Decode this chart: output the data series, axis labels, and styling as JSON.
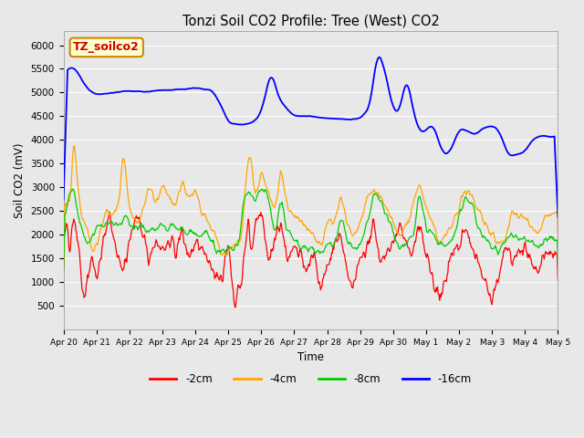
{
  "title": "Tonzi Soil CO2 Profile: Tree (West) CO2",
  "ylabel": "Soil CO2 (mV)",
  "xlabel": "Time",
  "annotation_text": "TZ_soilco2",
  "annotation_bg": "#ffffcc",
  "annotation_border": "#cc8800",
  "annotation_text_color": "#cc0000",
  "ylim": [
    0,
    6300
  ],
  "yticks": [
    500,
    1000,
    1500,
    2000,
    2500,
    3000,
    3500,
    4000,
    4500,
    5000,
    5500,
    6000
  ],
  "background_color": "#e8e8e8",
  "grid_color": "#ffffff",
  "colors": {
    "-2cm": "#ff0000",
    "-4cm": "#ffa500",
    "-8cm": "#00cc00",
    "-16cm": "#0000ff"
  },
  "legend_labels": [
    "-2cm",
    "-4cm",
    "-8cm",
    "-16cm"
  ],
  "xtick_labels": [
    "Apr 20",
    "Apr 21",
    "Apr 22",
    "Apr 23",
    "Apr 24",
    "Apr 25",
    "Apr 26",
    "Apr 27",
    "Apr 28",
    "Apr 29",
    "Apr 30",
    "May 1",
    "May 2",
    "May 3",
    "May 4",
    "May 5"
  ],
  "n_points": 720
}
